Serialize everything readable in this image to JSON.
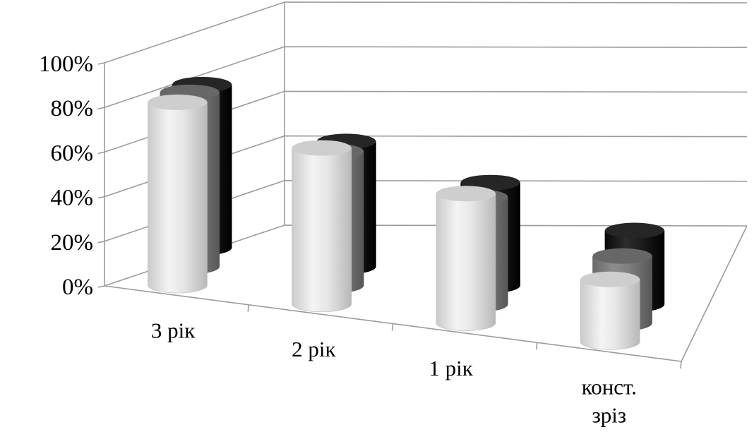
{
  "chart_data": {
    "type": "bar",
    "subtype": "3d-cylinder",
    "categories": [
      "3 рік",
      "2 рік",
      "1 рік",
      "конст.\nзріз"
    ],
    "yticks": [
      "0%",
      "20%",
      "40%",
      "60%",
      "80%",
      "100%"
    ],
    "ylim": [
      0,
      100
    ],
    "grid": true,
    "legend": "none",
    "series": [
      {
        "values": [
          82,
          70,
          58,
          28
        ],
        "color": "#e6e6e6"
      },
      {
        "values": [
          78,
          60,
          48,
          30
        ],
        "color": "#7f7f7f"
      },
      {
        "values": [
          73,
          56,
          46,
          33
        ],
        "color": "#1e1e1e"
      }
    ]
  }
}
